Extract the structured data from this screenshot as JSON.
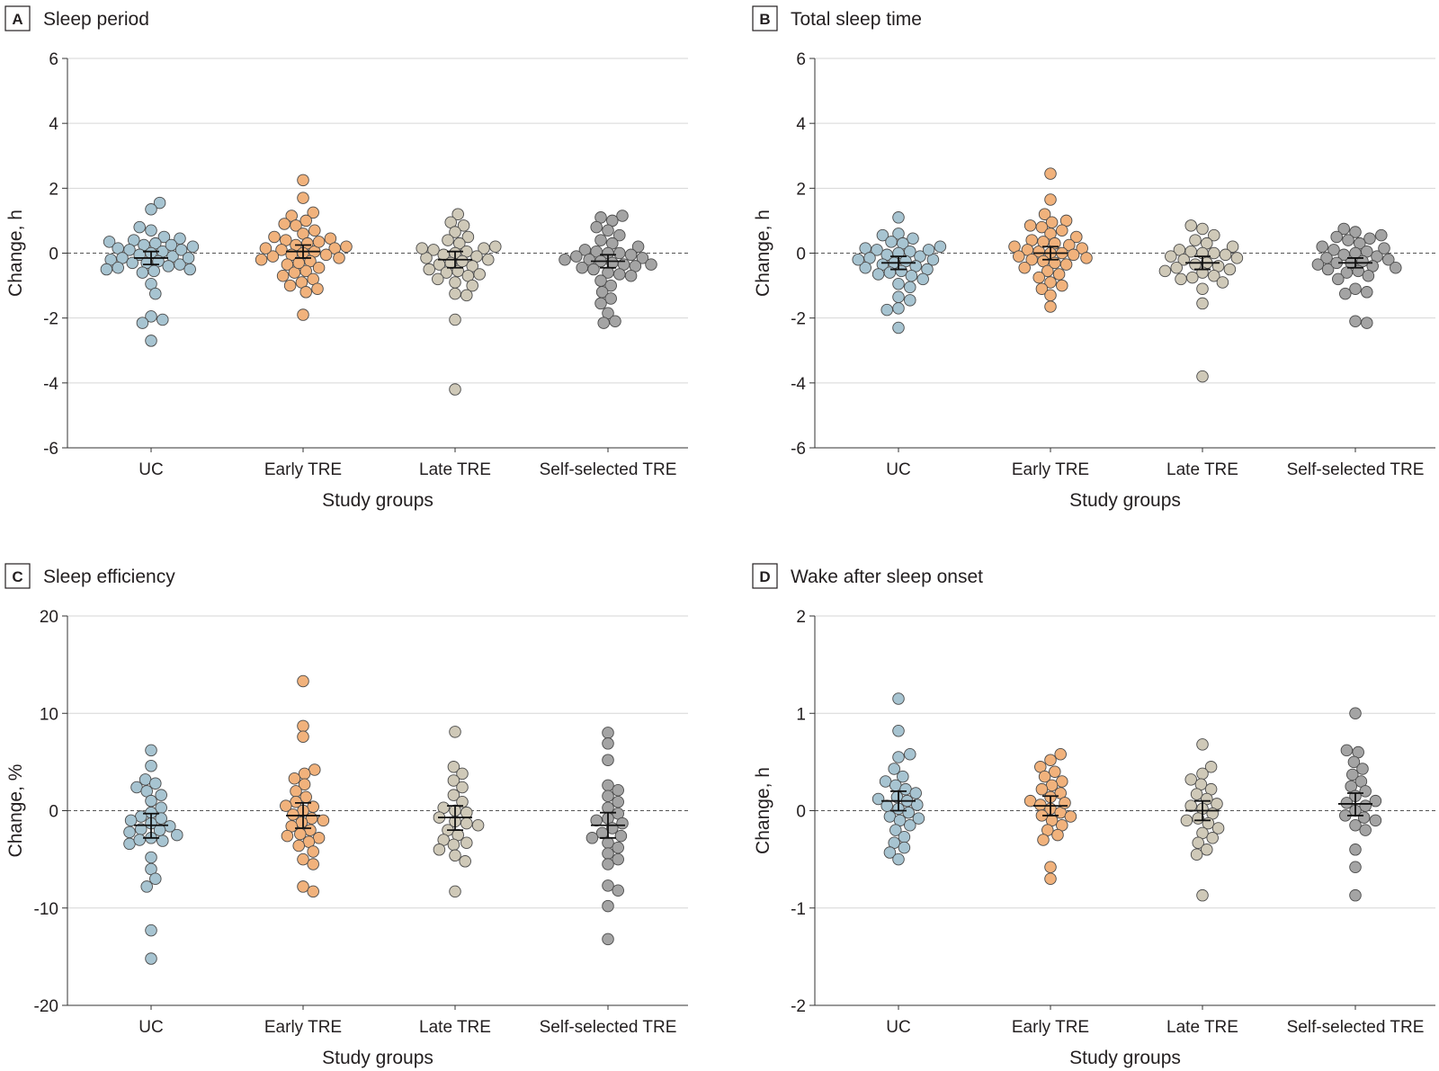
{
  "colors": {
    "UC": "#a7c4d1",
    "Early TRE": "#f1b27c",
    "Late TRE": "#cfc9b8",
    "Self-selected TRE": "#a4a4a4"
  },
  "chart_data": [
    {
      "type": "scatter",
      "letter": "A",
      "title": "Sleep period",
      "xlabel": "Study groups",
      "ylabel": "Change, h",
      "ylim": [
        -6,
        6
      ],
      "yticks": [
        -6,
        -4,
        -2,
        0,
        2,
        4,
        6
      ],
      "ytick_labels": [
        "-6",
        "-4",
        "-2",
        "0",
        "2",
        "4",
        "6"
      ],
      "categories": [
        "UC",
        "Early TRE",
        "Late TRE",
        "Self-selected TRE"
      ],
      "series": [
        {
          "name": "UC",
          "mean": -0.15,
          "ci": [
            -0.35,
            0.05
          ],
          "values": [
            1.55,
            1.35,
            0.8,
            0.7,
            0.5,
            0.45,
            0.4,
            0.35,
            0.3,
            0.25,
            0.2,
            0.15,
            0.1,
            0.05,
            0.0,
            -0.05,
            -0.1,
            -0.15,
            -0.2,
            -0.25,
            -0.3,
            -0.35,
            -0.4,
            -0.45,
            -0.5,
            -0.55,
            -0.6,
            0.25,
            0.1,
            -0.15,
            -0.3,
            -0.5,
            -0.95,
            -1.25,
            -1.95,
            -2.05,
            -2.15,
            -2.7
          ]
        },
        {
          "name": "Early TRE",
          "mean": 0.05,
          "ci": [
            -0.15,
            0.25
          ],
          "values": [
            2.25,
            1.7,
            1.25,
            1.15,
            1.0,
            0.9,
            0.85,
            0.7,
            0.6,
            0.5,
            0.45,
            0.4,
            0.3,
            0.25,
            0.2,
            0.15,
            0.1,
            0.05,
            0.0,
            -0.05,
            -0.1,
            -0.15,
            -0.2,
            -0.25,
            -0.35,
            -0.45,
            -0.55,
            -0.6,
            -0.7,
            -0.8,
            -0.9,
            -1.0,
            -1.1,
            -1.2,
            0.35,
            0.15,
            -0.05,
            -0.3,
            -1.9
          ]
        },
        {
          "name": "Late TRE",
          "mean": -0.2,
          "ci": [
            -0.45,
            0.05
          ],
          "values": [
            1.2,
            0.95,
            0.85,
            0.65,
            0.5,
            0.4,
            0.3,
            0.2,
            0.15,
            0.1,
            0.05,
            0.0,
            -0.05,
            -0.1,
            -0.15,
            -0.2,
            -0.3,
            -0.35,
            -0.4,
            -0.5,
            -0.55,
            -0.6,
            -0.7,
            -0.8,
            -0.9,
            -1.0,
            -1.25,
            -1.3,
            0.15,
            -0.25,
            -0.65,
            -2.05,
            -4.2
          ]
        },
        {
          "name": "Self-selected TRE",
          "mean": -0.25,
          "ci": [
            -0.45,
            -0.05
          ],
          "values": [
            1.15,
            1.1,
            1.0,
            0.8,
            0.7,
            0.55,
            0.4,
            0.3,
            0.2,
            0.1,
            0.05,
            0.0,
            -0.05,
            -0.1,
            -0.15,
            -0.2,
            -0.25,
            -0.3,
            -0.35,
            -0.4,
            -0.45,
            -0.5,
            -0.6,
            -0.7,
            -0.85,
            -1.0,
            -1.2,
            -1.4,
            -1.55,
            -1.85,
            -2.1,
            -2.15,
            0.0,
            -0.2,
            -0.35,
            -0.65
          ]
        }
      ]
    },
    {
      "type": "scatter",
      "letter": "B",
      "title": "Total sleep time",
      "xlabel": "Study groups",
      "ylabel": "Change, h",
      "ylim": [
        -6,
        6
      ],
      "yticks": [
        -6,
        -4,
        -2,
        0,
        2,
        4,
        6
      ],
      "ytick_labels": [
        "-6",
        "-4",
        "-2",
        "0",
        "2",
        "4",
        "6"
      ],
      "categories": [
        "UC",
        "Early TRE",
        "Late TRE",
        "Self-selected TRE"
      ],
      "series": [
        {
          "name": "UC",
          "mean": -0.3,
          "ci": [
            -0.5,
            -0.1
          ],
          "values": [
            1.1,
            0.6,
            0.55,
            0.45,
            0.35,
            0.3,
            0.2,
            0.15,
            0.1,
            0.05,
            0.0,
            -0.05,
            -0.1,
            -0.15,
            -0.2,
            -0.25,
            -0.3,
            -0.35,
            -0.4,
            -0.45,
            -0.5,
            -0.55,
            -0.6,
            -0.65,
            -0.7,
            -0.8,
            -0.95,
            -1.05,
            -1.35,
            -1.45,
            -1.7,
            -1.75,
            -2.3,
            0.1,
            -0.2
          ]
        },
        {
          "name": "Early TRE",
          "mean": 0.0,
          "ci": [
            -0.2,
            0.2
          ],
          "values": [
            2.45,
            1.65,
            1.2,
            1.0,
            0.95,
            0.85,
            0.8,
            0.7,
            0.6,
            0.5,
            0.4,
            0.3,
            0.25,
            0.2,
            0.15,
            0.1,
            0.05,
            0.0,
            -0.05,
            -0.1,
            -0.15,
            -0.2,
            -0.25,
            -0.35,
            -0.45,
            -0.55,
            -0.65,
            -0.75,
            -0.9,
            -1.0,
            -1.1,
            -1.3,
            -1.65,
            0.35,
            0.0,
            -0.3
          ]
        },
        {
          "name": "Late TRE",
          "mean": -0.3,
          "ci": [
            -0.5,
            -0.1
          ],
          "values": [
            0.85,
            0.75,
            0.55,
            0.4,
            0.3,
            0.2,
            0.1,
            0.05,
            0.0,
            -0.05,
            -0.1,
            -0.15,
            -0.2,
            -0.3,
            -0.4,
            -0.45,
            -0.5,
            -0.55,
            -0.6,
            -0.7,
            -0.75,
            -0.8,
            -0.9,
            -1.1,
            -1.55,
            -3.8,
            0.0,
            -0.35
          ]
        },
        {
          "name": "Self-selected TRE",
          "mean": -0.3,
          "ci": [
            -0.45,
            -0.15
          ],
          "values": [
            0.75,
            0.65,
            0.55,
            0.5,
            0.45,
            0.4,
            0.3,
            0.2,
            0.1,
            0.05,
            0.0,
            -0.05,
            -0.1,
            -0.15,
            -0.2,
            -0.25,
            -0.3,
            -0.35,
            -0.4,
            -0.45,
            -0.5,
            -0.55,
            -0.6,
            -0.7,
            -0.8,
            -1.1,
            -1.2,
            -1.25,
            -2.1,
            -2.15,
            0.15,
            -0.3
          ]
        }
      ]
    },
    {
      "type": "scatter",
      "letter": "C",
      "title": "Sleep efficiency",
      "xlabel": "Study groups",
      "ylabel": "Change, %",
      "ylim": [
        -20,
        20
      ],
      "yticks": [
        -20,
        -10,
        0,
        10,
        20
      ],
      "ytick_labels": [
        "-20",
        "-10",
        "0",
        "10",
        "20"
      ],
      "categories": [
        "UC",
        "Early TRE",
        "Late TRE",
        "Self-selected TRE"
      ],
      "series": [
        {
          "name": "UC",
          "mean": -1.5,
          "ci": [
            -2.8,
            -0.3
          ],
          "values": [
            6.2,
            4.6,
            3.2,
            2.8,
            2.4,
            2.0,
            1.6,
            1.0,
            0.3,
            -0.2,
            -0.6,
            -1.0,
            -1.3,
            -1.6,
            -1.9,
            -2.2,
            -2.5,
            -2.8,
            -3.1,
            -3.4,
            -4.8,
            -6.0,
            -7.0,
            -7.8,
            -12.3,
            -15.2,
            -0.8,
            -2.0,
            -3.0
          ]
        },
        {
          "name": "Early TRE",
          "mean": -0.5,
          "ci": [
            -1.8,
            0.8
          ],
          "values": [
            13.3,
            8.7,
            7.6,
            4.2,
            3.8,
            3.3,
            2.7,
            2.0,
            1.4,
            0.9,
            0.4,
            0.0,
            -0.4,
            -0.8,
            -1.2,
            -1.6,
            -2.0,
            -2.4,
            -2.8,
            -3.2,
            -3.6,
            -4.2,
            -5.0,
            -5.5,
            -7.8,
            -8.3,
            0.5,
            -1.0,
            -2.6
          ]
        },
        {
          "name": "Late TRE",
          "mean": -0.7,
          "ci": [
            -2.0,
            0.5
          ],
          "values": [
            8.1,
            4.5,
            3.8,
            3.1,
            2.4,
            1.6,
            0.9,
            0.3,
            -0.2,
            -0.7,
            -1.1,
            -1.5,
            -2.0,
            -2.5,
            -3.0,
            -3.5,
            -4.0,
            -4.6,
            -5.2,
            -8.3,
            0.0,
            -1.3,
            -3.3
          ]
        },
        {
          "name": "Self-selected TRE",
          "mean": -1.5,
          "ci": [
            -2.8,
            -0.2
          ],
          "values": [
            8.0,
            6.9,
            5.2,
            2.6,
            2.1,
            1.5,
            0.9,
            0.3,
            -0.3,
            -0.8,
            -1.3,
            -1.8,
            -2.3,
            -2.8,
            -3.3,
            -3.8,
            -4.4,
            -5.0,
            -5.5,
            -7.7,
            -8.2,
            -9.8,
            -13.2,
            -1.0,
            -2.6
          ]
        }
      ]
    },
    {
      "type": "scatter",
      "letter": "D",
      "title": "Wake after sleep onset",
      "xlabel": "Study groups",
      "ylabel": "Change, h",
      "ylim": [
        -2,
        2
      ],
      "yticks": [
        -2,
        -1,
        0,
        1,
        2
      ],
      "ytick_labels": [
        "-2",
        "-1",
        "0",
        "1",
        "2"
      ],
      "categories": [
        "UC",
        "Early TRE",
        "Late TRE",
        "Self-selected TRE"
      ],
      "series": [
        {
          "name": "UC",
          "mean": 0.1,
          "ci": [
            0.0,
            0.2
          ],
          "values": [
            1.15,
            0.82,
            0.58,
            0.55,
            0.43,
            0.35,
            0.3,
            0.26,
            0.22,
            0.18,
            0.14,
            0.1,
            0.06,
            0.02,
            -0.02,
            -0.06,
            -0.1,
            -0.15,
            -0.2,
            -0.27,
            -0.33,
            -0.38,
            -0.43,
            -0.5,
            0.12,
            0.05,
            -0.08
          ]
        },
        {
          "name": "Early TRE",
          "mean": 0.05,
          "ci": [
            -0.05,
            0.15
          ],
          "values": [
            0.58,
            0.52,
            0.45,
            0.4,
            0.35,
            0.3,
            0.26,
            0.22,
            0.18,
            0.14,
            0.1,
            0.06,
            0.02,
            -0.02,
            -0.06,
            -0.1,
            -0.15,
            -0.2,
            -0.25,
            -0.3,
            -0.58,
            -0.7,
            0.08,
            -0.05
          ]
        },
        {
          "name": "Late TRE",
          "mean": 0.0,
          "ci": [
            -0.1,
            0.1
          ],
          "values": [
            0.68,
            0.45,
            0.38,
            0.32,
            0.27,
            0.22,
            0.17,
            0.12,
            0.07,
            0.02,
            -0.03,
            -0.08,
            -0.13,
            -0.18,
            -0.23,
            -0.28,
            -0.33,
            -0.4,
            -0.45,
            -0.87,
            0.05,
            -0.1
          ]
        },
        {
          "name": "Self-selected TRE",
          "mean": 0.07,
          "ci": [
            -0.05,
            0.18
          ],
          "values": [
            1.0,
            0.62,
            0.6,
            0.5,
            0.43,
            0.37,
            0.3,
            0.25,
            0.2,
            0.15,
            0.1,
            0.05,
            0.0,
            -0.05,
            -0.1,
            -0.15,
            -0.2,
            -0.4,
            -0.58,
            -0.87,
            0.08,
            -0.07
          ]
        }
      ]
    }
  ]
}
